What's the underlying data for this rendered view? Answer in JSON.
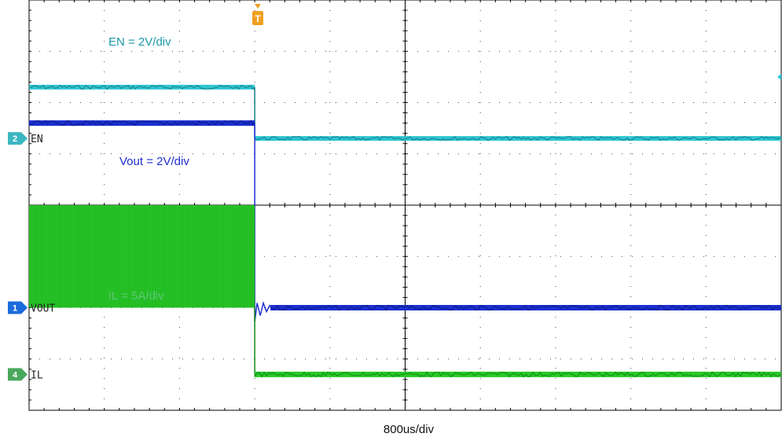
{
  "chart_data": {
    "type": "line",
    "title": "",
    "xlabel": "800us/div",
    "ylabel": "",
    "grid": true,
    "divisions": {
      "x": 10,
      "y": 8
    },
    "trigger": {
      "label": "T",
      "color": "#f0a020",
      "x_div": 3
    },
    "annotations": [
      {
        "text": "EN = 2V/div",
        "color": "#1a9aa8"
      },
      {
        "text": "Vout = 2V/div",
        "color": "#1e2fd0"
      },
      {
        "text": "IL = 5A/div",
        "color": "#5cc87a"
      }
    ],
    "channels": [
      {
        "num": "2",
        "tag": "EN",
        "color": "#2ec6d0",
        "dark": "#157e88",
        "badge_color": "#3cb6c0",
        "ref_div": 5.3,
        "high_div": 6.3,
        "low_div": 5.3,
        "edge_div": 3.0
      },
      {
        "num": "1",
        "tag": "VOUT",
        "color": "#1c2fd0",
        "dark": "#0a1a80",
        "badge_color": "#1c6bdc",
        "ref_div": 2.0,
        "high_div": 5.6,
        "low_div": 2.0,
        "edge_div": 3.0
      },
      {
        "num": "4",
        "tag": "IL",
        "color": "#28c828",
        "dark": "#128a12",
        "badge_color": "#4aa85c",
        "ref_div": 0.7,
        "band_top_div": 4.0,
        "band_bottom_div": 2.0,
        "low_div": 0.7,
        "edge_div": 3.0
      }
    ]
  }
}
